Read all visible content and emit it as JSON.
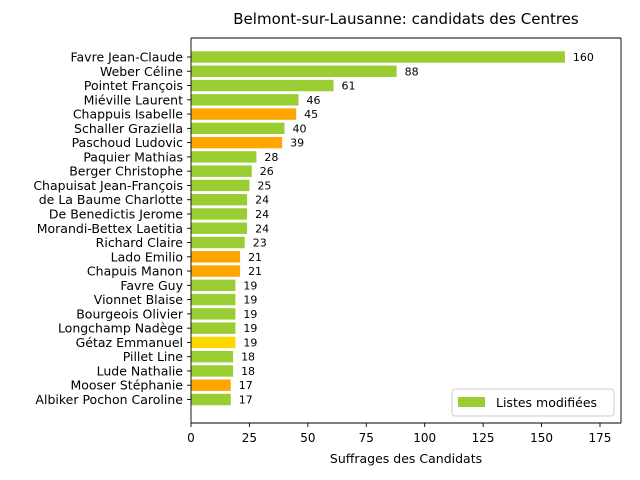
{
  "chart_data": {
    "type": "bar",
    "orientation": "horizontal",
    "title": "Belmont-sur-Lausanne: candidats des Centres",
    "xlabel": "Suffrages des Candidats",
    "ylabel": "",
    "xlim": [
      0,
      184
    ],
    "xticks": [
      0,
      25,
      50,
      75,
      100,
      125,
      150,
      175
    ],
    "legend": {
      "label": "Listes modifiées",
      "color": "#9acd32",
      "placement": "lower-right"
    },
    "bars": [
      {
        "name": "Favre Jean-Claude",
        "value": 160,
        "color": "#9acd32"
      },
      {
        "name": "Weber Céline",
        "value": 88,
        "color": "#9acd32"
      },
      {
        "name": "Pointet François",
        "value": 61,
        "color": "#9acd32"
      },
      {
        "name": "Miéville Laurent",
        "value": 46,
        "color": "#9acd32"
      },
      {
        "name": "Chappuis Isabelle",
        "value": 45,
        "color": "#ffa500"
      },
      {
        "name": "Schaller Graziella",
        "value": 40,
        "color": "#9acd32"
      },
      {
        "name": "Paschoud Ludovic",
        "value": 39,
        "color": "#ffa500"
      },
      {
        "name": "Paquier Mathias",
        "value": 28,
        "color": "#9acd32"
      },
      {
        "name": "Berger Christophe",
        "value": 26,
        "color": "#9acd32"
      },
      {
        "name": "Chapuisat Jean-François",
        "value": 25,
        "color": "#9acd32"
      },
      {
        "name": "de La Baume Charlotte",
        "value": 24,
        "color": "#9acd32"
      },
      {
        "name": "De Benedictis Jerome",
        "value": 24,
        "color": "#9acd32"
      },
      {
        "name": "Morandi-Bettex Laetitia",
        "value": 24,
        "color": "#9acd32"
      },
      {
        "name": "Richard Claire",
        "value": 23,
        "color": "#9acd32"
      },
      {
        "name": "Lado Emilio",
        "value": 21,
        "color": "#ffa500"
      },
      {
        "name": "Chapuis Manon",
        "value": 21,
        "color": "#ffa500"
      },
      {
        "name": "Favre Guy",
        "value": 19,
        "color": "#9acd32"
      },
      {
        "name": "Vionnet Blaise",
        "value": 19,
        "color": "#9acd32"
      },
      {
        "name": "Bourgeois Olivier",
        "value": 19,
        "color": "#9acd32"
      },
      {
        "name": "Longchamp Nadège",
        "value": 19,
        "color": "#9acd32"
      },
      {
        "name": "Gétaz Emmanuel",
        "value": 19,
        "color": "#ffd700"
      },
      {
        "name": "Pillet Line",
        "value": 18,
        "color": "#9acd32"
      },
      {
        "name": "Lude Nathalie",
        "value": 18,
        "color": "#9acd32"
      },
      {
        "name": "Mooser Stéphanie",
        "value": 17,
        "color": "#ffa500"
      },
      {
        "name": "Albiker Pochon Caroline",
        "value": 17,
        "color": "#9acd32"
      }
    ]
  }
}
